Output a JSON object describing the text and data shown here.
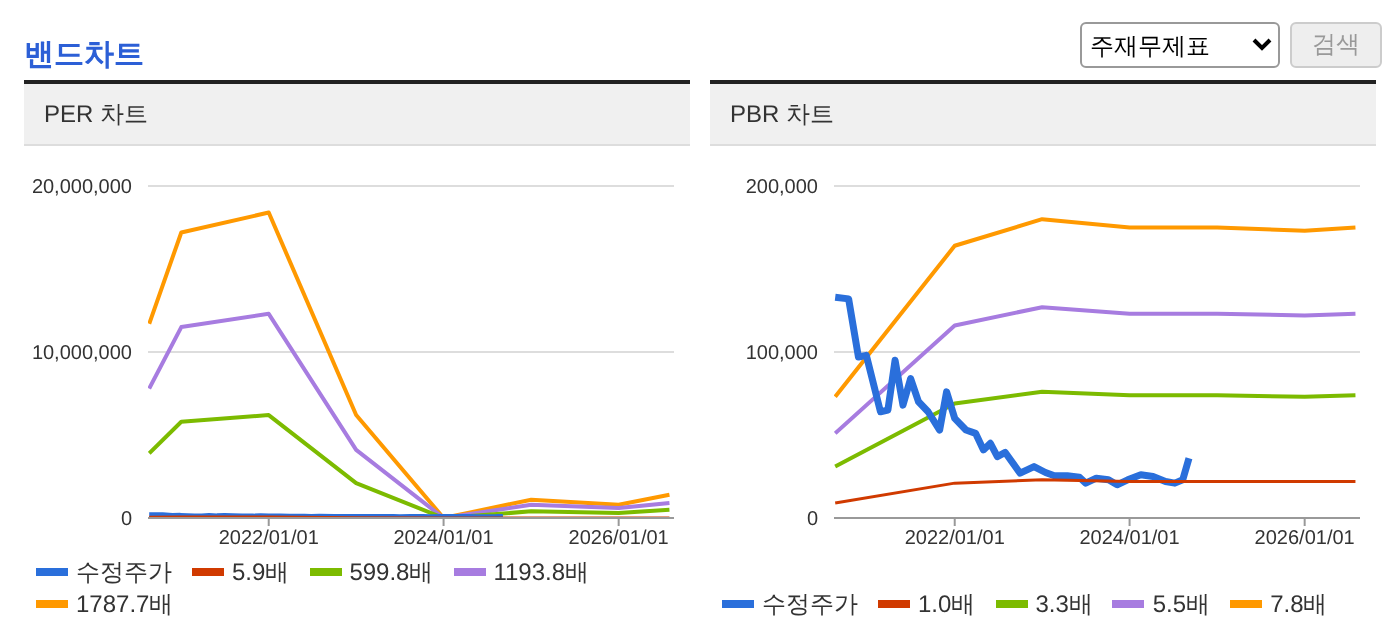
{
  "chart_data": [
    {
      "type": "other",
      "title": "밴드차트",
      "annotations": [
        "주재무제표",
        "검색"
      ]
    },
    {
      "type": "line",
      "title": "PER 차트",
      "xlim": [
        "2020-08-15",
        "2026-08-20"
      ],
      "xticks": [
        {
          "value": "2022-01-01",
          "label": "2022/01/01"
        },
        {
          "value": "2024-01-01",
          "label": "2024/01/01"
        },
        {
          "value": "2026-01-01",
          "label": "2026/01/01"
        }
      ],
      "ylim": [
        0,
        20000000
      ],
      "yticks": [
        {
          "value": 0,
          "label": "0"
        },
        {
          "value": 10000000,
          "label": "10,000,000"
        },
        {
          "value": 20000000,
          "label": "20,000,000"
        }
      ],
      "grid": "y",
      "legend": "bottom",
      "series": [
        {
          "name": "수정주가",
          "color": "#2a6fdb",
          "x": [
            "2020-08-20",
            "2020-10-15",
            "2020-11-25",
            "2020-12-28",
            "2021-02-25",
            "2021-03-28",
            "2021-04-27",
            "2021-05-30",
            "2021-07-01",
            "2021-08-03",
            "2021-09-12",
            "2021-10-30",
            "2021-11-28",
            "2022-01-01",
            "2022-02-17",
            "2022-03-29",
            "2022-05-01",
            "2022-05-30",
            "2022-06-28",
            "2022-07-31",
            "2022-10-01",
            "2022-11-28",
            "2023-01-15",
            "2023-02-21",
            "2023-04-16",
            "2023-06-06",
            "2023-07-02",
            "2023-08-15",
            "2023-10-05",
            "2023-11-10",
            "2023-12-24",
            "2024-02-17",
            "2024-04-08",
            "2024-05-30",
            "2024-07-08",
            "2024-08-10",
            "2024-09-05"
          ],
          "values": [
            133000,
            132000,
            97000,
            98000,
            64000,
            65000,
            95000,
            68000,
            84000,
            70000,
            64000,
            53000,
            76000,
            60000,
            53000,
            51000,
            41000,
            45000,
            37000,
            39500,
            27000,
            31000,
            27400,
            25400,
            25400,
            24500,
            21000,
            24000,
            23000,
            20000,
            23000,
            26000,
            25000,
            22000,
            21000,
            23000,
            36000
          ]
        },
        {
          "name": "5.9배",
          "color": "#d03a00",
          "x": [
            "2020-08-20",
            "2021-01-01",
            "2022-01-01",
            "2023-01-01",
            "2024-01-01",
            "2025-01-01",
            "2026-01-01",
            "2026-08-01"
          ],
          "values": [
            39000,
            57000,
            61000,
            20000,
            0,
            4000,
            3000,
            5000
          ]
        },
        {
          "name": "599.8배",
          "color": "#7cbb00",
          "x": [
            "2020-08-20",
            "2021-01-01",
            "2022-01-01",
            "2023-01-01",
            "2024-01-01",
            "2025-01-01",
            "2026-01-01",
            "2026-08-01"
          ],
          "values": [
            3900000,
            5800000,
            6200000,
            2100000,
            0,
            400000,
            300000,
            500000
          ]
        },
        {
          "name": "1193.8배",
          "color": "#a77ce0",
          "x": [
            "2020-08-20",
            "2021-01-01",
            "2022-01-01",
            "2023-01-01",
            "2024-01-01",
            "2025-01-01",
            "2026-01-01",
            "2026-08-01"
          ],
          "values": [
            7800000,
            11500000,
            12300000,
            4100000,
            0,
            800000,
            600000,
            900000
          ]
        },
        {
          "name": "1787.7배",
          "color": "#ff9900",
          "x": [
            "2020-08-20",
            "2021-01-01",
            "2022-01-01",
            "2023-01-01",
            "2024-01-01",
            "2025-01-01",
            "2026-01-01",
            "2026-08-01"
          ],
          "values": [
            11700000,
            17200000,
            18400000,
            6200000,
            0,
            1100000,
            800000,
            1400000
          ]
        }
      ]
    },
    {
      "type": "line",
      "title": "PBR 차트",
      "xlim": [
        "2020-08-15",
        "2026-08-20"
      ],
      "xticks": [
        {
          "value": "2022-01-01",
          "label": "2022/01/01"
        },
        {
          "value": "2024-01-01",
          "label": "2024/01/01"
        },
        {
          "value": "2026-01-01",
          "label": "2026/01/01"
        }
      ],
      "ylim": [
        0,
        200000
      ],
      "yticks": [
        {
          "value": 0,
          "label": "0"
        },
        {
          "value": 100000,
          "label": "100,000"
        },
        {
          "value": 200000,
          "label": "200,000"
        }
      ],
      "grid": "y",
      "legend": "bottom",
      "series": [
        {
          "name": "수정주가",
          "color": "#2a6fdb",
          "x": [
            "2020-08-20",
            "2020-10-15",
            "2020-11-25",
            "2020-12-28",
            "2021-02-25",
            "2021-03-28",
            "2021-04-27",
            "2021-05-30",
            "2021-07-01",
            "2021-08-03",
            "2021-09-12",
            "2021-10-30",
            "2021-11-28",
            "2022-01-01",
            "2022-02-17",
            "2022-03-29",
            "2022-05-01",
            "2022-05-30",
            "2022-06-28",
            "2022-07-31",
            "2022-10-01",
            "2022-11-28",
            "2023-01-15",
            "2023-02-21",
            "2023-04-16",
            "2023-06-06",
            "2023-07-02",
            "2023-08-15",
            "2023-10-05",
            "2023-11-10",
            "2023-12-24",
            "2024-02-17",
            "2024-04-08",
            "2024-05-30",
            "2024-07-08",
            "2024-08-10",
            "2024-09-05"
          ],
          "values": [
            133000,
            132000,
            97000,
            98000,
            64000,
            65000,
            95000,
            68000,
            84000,
            70000,
            64000,
            53000,
            76000,
            60000,
            53000,
            51000,
            41000,
            45000,
            37000,
            39500,
            27000,
            31000,
            27400,
            25400,
            25400,
            24500,
            21000,
            24000,
            23000,
            20000,
            23000,
            26000,
            25000,
            22000,
            21000,
            23000,
            36000
          ]
        },
        {
          "name": "1.0배",
          "color": "#d03a00",
          "x": [
            "2020-08-20",
            "2022-01-01",
            "2023-01-01",
            "2024-01-01",
            "2025-01-01",
            "2026-01-01",
            "2026-08-01"
          ],
          "values": [
            9000,
            21000,
            23000,
            22000,
            22000,
            22000,
            22000
          ]
        },
        {
          "name": "3.3배",
          "color": "#7cbb00",
          "x": [
            "2020-08-20",
            "2022-01-01",
            "2023-01-01",
            "2024-01-01",
            "2025-01-01",
            "2026-01-01",
            "2026-08-01"
          ],
          "values": [
            31000,
            69000,
            76000,
            74000,
            74000,
            73000,
            74000
          ]
        },
        {
          "name": "5.5배",
          "color": "#a77ce0",
          "x": [
            "2020-08-20",
            "2022-01-01",
            "2023-01-01",
            "2024-01-01",
            "2025-01-01",
            "2026-01-01",
            "2026-08-01"
          ],
          "values": [
            51000,
            116000,
            127000,
            123000,
            123000,
            122000,
            123000
          ]
        },
        {
          "name": "7.8배",
          "color": "#ff9900",
          "x": [
            "2020-08-20",
            "2022-01-01",
            "2023-01-01",
            "2024-01-01",
            "2025-01-01",
            "2026-01-01",
            "2026-08-01"
          ],
          "values": [
            73000,
            164000,
            180000,
            175000,
            175000,
            173000,
            175000
          ]
        }
      ]
    }
  ]
}
